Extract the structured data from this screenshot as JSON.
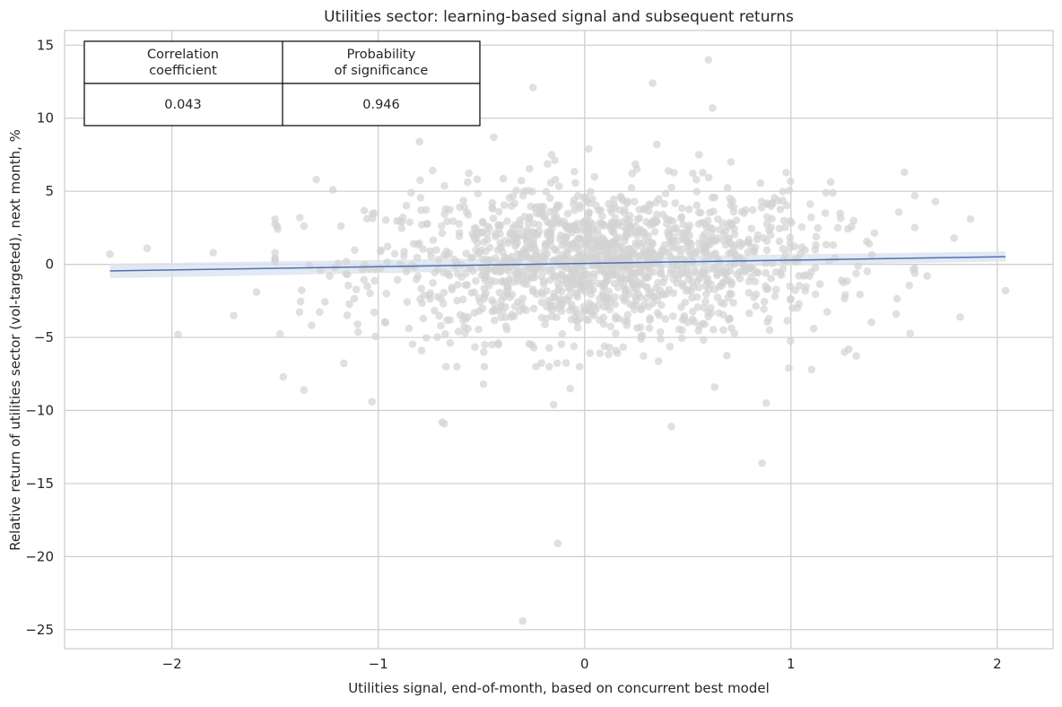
{
  "chart_data": {
    "type": "scatter",
    "title": "Utilities sector: learning-based signal and subsequent returns",
    "xlabel": "Utilities signal, end-of-month, based on concurrent best model",
    "ylabel": "Relative return of utilities sector (vol-targeted), next month, %",
    "xlim": [
      -2.52,
      2.27
    ],
    "ylim": [
      -26.3,
      16.0
    ],
    "x_ticks": [
      -2,
      -1,
      0,
      1,
      2
    ],
    "x_tick_labels": [
      "−2",
      "−1",
      "0",
      "1",
      "2"
    ],
    "y_ticks": [
      -25,
      -20,
      -15,
      -10,
      -5,
      0,
      5,
      10,
      15
    ],
    "y_tick_labels": [
      "−25",
      "−20",
      "−15",
      "−10",
      "−5",
      "0",
      "5",
      "10",
      "15"
    ],
    "grid": true,
    "point_color": "#d3d3d3",
    "line_color": "#4c72b0",
    "band_color": "#dbe3f0",
    "regression": {
      "x": [
        -2.3,
        2.04
      ],
      "y": [
        -0.45,
        0.52
      ],
      "ci_lower": [
        -0.95,
        0.2
      ],
      "ci_upper": [
        0.05,
        0.88
      ]
    },
    "outlier_points": [
      [
        -2.3,
        0.7
      ],
      [
        -2.12,
        1.1
      ],
      [
        -1.97,
        -4.8
      ],
      [
        -1.8,
        0.8
      ],
      [
        -1.7,
        -3.5
      ],
      [
        -1.49,
        2.6
      ],
      [
        -1.46,
        -7.7
      ],
      [
        -1.36,
        -8.6
      ],
      [
        -1.3,
        5.8
      ],
      [
        -1.22,
        5.1
      ],
      [
        -1.03,
        -9.4
      ],
      [
        -1.02,
        3.5
      ],
      [
        -0.8,
        8.4
      ],
      [
        -0.79,
        -5.9
      ],
      [
        -0.69,
        -10.8
      ],
      [
        -0.68,
        -10.9
      ],
      [
        -0.49,
        -8.2
      ],
      [
        -0.44,
        8.7
      ],
      [
        -0.25,
        12.1
      ],
      [
        -0.15,
        -9.6
      ],
      [
        -0.13,
        -19.1
      ],
      [
        -0.3,
        -24.4
      ],
      [
        0.02,
        7.9
      ],
      [
        0.33,
        12.4
      ],
      [
        0.42,
        -11.1
      ],
      [
        0.6,
        14.0
      ],
      [
        0.62,
        10.7
      ],
      [
        0.63,
        -8.4
      ],
      [
        0.86,
        -13.6
      ],
      [
        0.88,
        -9.5
      ],
      [
        1.1,
        -7.2
      ],
      [
        1.26,
        -6.0
      ],
      [
        1.55,
        6.3
      ],
      [
        1.6,
        4.7
      ],
      [
        1.66,
        -0.8
      ],
      [
        1.7,
        4.3
      ],
      [
        1.79,
        1.8
      ],
      [
        1.82,
        -3.6
      ],
      [
        1.87,
        3.1
      ],
      [
        2.04,
        -1.8
      ],
      [
        1.28,
        -5.8
      ],
      [
        0.99,
        -7.1
      ],
      [
        -0.58,
        -4.7
      ],
      [
        -1.59,
        -1.9
      ],
      [
        -1.38,
        3.2
      ],
      [
        1.51,
        -3.4
      ],
      [
        -1.1,
        -4.1
      ],
      [
        0.35,
        8.2
      ],
      [
        -0.07,
        -8.5
      ],
      [
        1.17,
        4.9
      ]
    ],
    "cloud": {
      "count": 1500,
      "seed": 12345,
      "x_mean": 0.08,
      "x_sd": 0.55,
      "y_mean": 0.1,
      "y_sd": 2.6,
      "slope": 0.22
    }
  },
  "stats_table": {
    "headers": [
      "Correlation\ncoefficient",
      "Probability\nof significance"
    ],
    "values": [
      "0.043",
      "0.946"
    ]
  }
}
